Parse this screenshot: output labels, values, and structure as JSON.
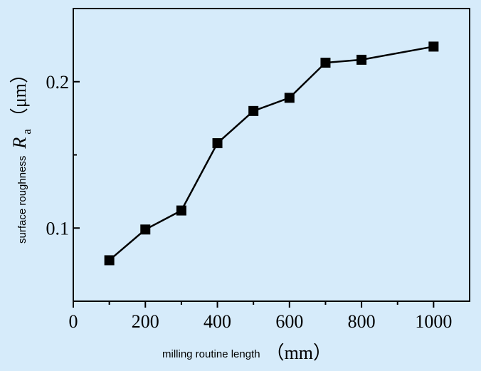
{
  "chart_data": {
    "type": "line",
    "x": [
      100,
      200,
      300,
      400,
      500,
      600,
      700,
      800,
      1000
    ],
    "series": [
      {
        "values": [
          0.078,
          0.099,
          0.112,
          0.158,
          0.18,
          0.189,
          0.213,
          0.215,
          0.224
        ]
      }
    ],
    "xlim": [
      0,
      1100
    ],
    "ylim": [
      0.05,
      0.25
    ],
    "x_ticks": [
      0,
      200,
      400,
      600,
      800,
      1000
    ],
    "y_ticks": [
      0.1,
      0.2
    ],
    "x_tick_labels": [
      "0",
      "200",
      "400",
      "600",
      "800",
      "1000"
    ],
    "y_tick_labels": [
      "0.1",
      "0.2"
    ],
    "xlabel": "milling routine length",
    "xlabel_unit": "（mm）",
    "ylabel_prefix": "surface roughness",
    "ylabel_symbol": "R",
    "ylabel_subscript": "a",
    "ylabel_unit": "（μm）",
    "marker": "filled-square",
    "line_color": "#000000",
    "background_color": "#d6ebfa",
    "grid": false
  }
}
